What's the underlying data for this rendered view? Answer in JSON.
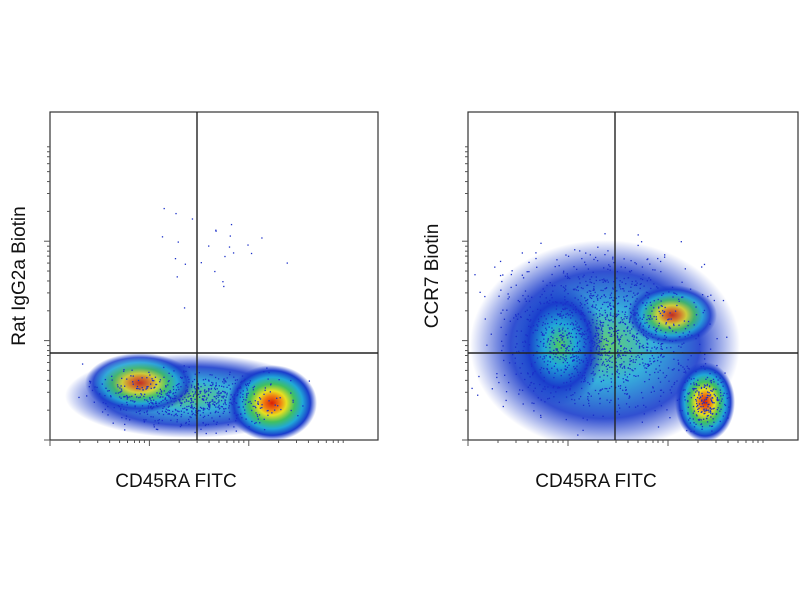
{
  "panels": [
    {
      "x_label": "CD45RA FITC",
      "y_label": "Rat IgG2a Biotin"
    },
    {
      "x_label": "CD45RA FITC",
      "y_label": "CCR7 Biotin"
    }
  ]
}
